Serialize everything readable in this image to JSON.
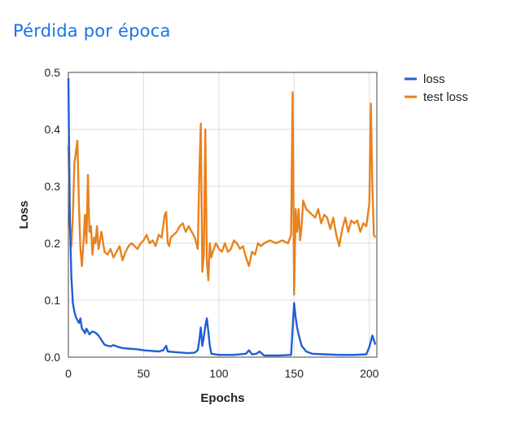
{
  "page": {
    "title": "Pérdida por época",
    "title_color": "#1a73e8"
  },
  "chart_data": {
    "type": "line",
    "title": "Pérdida por época",
    "xlabel": "Epochs",
    "ylabel": "Loss",
    "xlim": [
      0,
      205
    ],
    "ylim": [
      0,
      0.5
    ],
    "x_ticks": [
      0,
      50,
      100,
      150,
      200
    ],
    "y_ticks": [
      0.0,
      0.1,
      0.2,
      0.3,
      0.4,
      0.5
    ],
    "y_tick_labels": [
      "0.0",
      "0.1",
      "0.2",
      "0.3",
      "0.4",
      "0.5"
    ],
    "grid": true,
    "legend_position": "top-right",
    "series": [
      {
        "name": "loss",
        "color": "#1f5fd6",
        "points": [
          [
            0,
            0.49
          ],
          [
            1,
            0.24
          ],
          [
            2,
            0.14
          ],
          [
            3,
            0.095
          ],
          [
            4,
            0.08
          ],
          [
            5,
            0.07
          ],
          [
            6,
            0.065
          ],
          [
            7,
            0.06
          ],
          [
            8,
            0.068
          ],
          [
            9,
            0.05
          ],
          [
            10,
            0.047
          ],
          [
            11,
            0.042
          ],
          [
            12,
            0.05
          ],
          [
            13,
            0.045
          ],
          [
            14,
            0.04
          ],
          [
            15,
            0.043
          ],
          [
            16,
            0.045
          ],
          [
            18,
            0.043
          ],
          [
            20,
            0.038
          ],
          [
            22,
            0.03
          ],
          [
            24,
            0.022
          ],
          [
            26,
            0.02
          ],
          [
            28,
            0.019
          ],
          [
            30,
            0.021
          ],
          [
            33,
            0.018
          ],
          [
            36,
            0.016
          ],
          [
            40,
            0.015
          ],
          [
            45,
            0.014
          ],
          [
            50,
            0.012
          ],
          [
            55,
            0.011
          ],
          [
            60,
            0.01
          ],
          [
            63,
            0.012
          ],
          [
            65,
            0.02
          ],
          [
            66,
            0.01
          ],
          [
            70,
            0.009
          ],
          [
            75,
            0.008
          ],
          [
            80,
            0.007
          ],
          [
            84,
            0.008
          ],
          [
            86,
            0.012
          ],
          [
            87,
            0.03
          ],
          [
            88,
            0.052
          ],
          [
            89,
            0.02
          ],
          [
            90,
            0.035
          ],
          [
            91,
            0.055
          ],
          [
            92,
            0.068
          ],
          [
            93,
            0.045
          ],
          [
            94,
            0.02
          ],
          [
            95,
            0.006
          ],
          [
            100,
            0.004
          ],
          [
            110,
            0.004
          ],
          [
            118,
            0.006
          ],
          [
            120,
            0.012
          ],
          [
            122,
            0.005
          ],
          [
            125,
            0.006
          ],
          [
            127,
            0.01
          ],
          [
            130,
            0.003
          ],
          [
            140,
            0.003
          ],
          [
            148,
            0.004
          ],
          [
            149,
            0.05
          ],
          [
            150,
            0.095
          ],
          [
            151,
            0.07
          ],
          [
            152,
            0.052
          ],
          [
            153,
            0.04
          ],
          [
            155,
            0.02
          ],
          [
            158,
            0.01
          ],
          [
            162,
            0.006
          ],
          [
            170,
            0.005
          ],
          [
            180,
            0.004
          ],
          [
            190,
            0.004
          ],
          [
            198,
            0.005
          ],
          [
            200,
            0.018
          ],
          [
            202,
            0.038
          ],
          [
            204,
            0.022
          ]
        ]
      },
      {
        "name": "test loss",
        "color": "#e8821e",
        "points": [
          [
            0,
            0.37
          ],
          [
            1,
            0.23
          ],
          [
            2,
            0.195
          ],
          [
            3,
            0.25
          ],
          [
            4,
            0.34
          ],
          [
            5,
            0.36
          ],
          [
            6,
            0.38
          ],
          [
            7,
            0.27
          ],
          [
            8,
            0.19
          ],
          [
            9,
            0.16
          ],
          [
            10,
            0.2
          ],
          [
            11,
            0.25
          ],
          [
            12,
            0.2
          ],
          [
            13,
            0.32
          ],
          [
            14,
            0.22
          ],
          [
            15,
            0.23
          ],
          [
            16,
            0.18
          ],
          [
            17,
            0.21
          ],
          [
            18,
            0.2
          ],
          [
            19,
            0.23
          ],
          [
            20,
            0.19
          ],
          [
            22,
            0.22
          ],
          [
            24,
            0.185
          ],
          [
            26,
            0.18
          ],
          [
            28,
            0.19
          ],
          [
            30,
            0.175
          ],
          [
            32,
            0.185
          ],
          [
            34,
            0.195
          ],
          [
            36,
            0.17
          ],
          [
            38,
            0.185
          ],
          [
            40,
            0.195
          ],
          [
            42,
            0.2
          ],
          [
            44,
            0.195
          ],
          [
            46,
            0.19
          ],
          [
            48,
            0.2
          ],
          [
            50,
            0.205
          ],
          [
            52,
            0.215
          ],
          [
            54,
            0.2
          ],
          [
            56,
            0.205
          ],
          [
            58,
            0.195
          ],
          [
            60,
            0.215
          ],
          [
            62,
            0.21
          ],
          [
            63,
            0.23
          ],
          [
            64,
            0.25
          ],
          [
            65,
            0.255
          ],
          [
            66,
            0.2
          ],
          [
            67,
            0.195
          ],
          [
            68,
            0.21
          ],
          [
            70,
            0.215
          ],
          [
            72,
            0.22
          ],
          [
            74,
            0.23
          ],
          [
            76,
            0.235
          ],
          [
            78,
            0.22
          ],
          [
            80,
            0.23
          ],
          [
            82,
            0.22
          ],
          [
            84,
            0.21
          ],
          [
            86,
            0.19
          ],
          [
            87,
            0.32
          ],
          [
            88,
            0.41
          ],
          [
            89,
            0.15
          ],
          [
            90,
            0.18
          ],
          [
            91,
            0.4
          ],
          [
            92,
            0.17
          ],
          [
            93,
            0.135
          ],
          [
            94,
            0.2
          ],
          [
            95,
            0.175
          ],
          [
            96,
            0.185
          ],
          [
            98,
            0.2
          ],
          [
            100,
            0.19
          ],
          [
            102,
            0.185
          ],
          [
            104,
            0.2
          ],
          [
            106,
            0.185
          ],
          [
            108,
            0.19
          ],
          [
            110,
            0.205
          ],
          [
            112,
            0.2
          ],
          [
            114,
            0.19
          ],
          [
            116,
            0.195
          ],
          [
            118,
            0.175
          ],
          [
            120,
            0.16
          ],
          [
            122,
            0.185
          ],
          [
            124,
            0.18
          ],
          [
            126,
            0.2
          ],
          [
            128,
            0.195
          ],
          [
            130,
            0.2
          ],
          [
            134,
            0.205
          ],
          [
            138,
            0.2
          ],
          [
            142,
            0.205
          ],
          [
            146,
            0.2
          ],
          [
            148,
            0.215
          ],
          [
            149,
            0.465
          ],
          [
            150,
            0.11
          ],
          [
            151,
            0.26
          ],
          [
            152,
            0.22
          ],
          [
            153,
            0.26
          ],
          [
            154,
            0.205
          ],
          [
            155,
            0.23
          ],
          [
            156,
            0.275
          ],
          [
            158,
            0.26
          ],
          [
            160,
            0.255
          ],
          [
            162,
            0.25
          ],
          [
            164,
            0.245
          ],
          [
            166,
            0.26
          ],
          [
            168,
            0.235
          ],
          [
            170,
            0.25
          ],
          [
            172,
            0.245
          ],
          [
            174,
            0.225
          ],
          [
            176,
            0.245
          ],
          [
            178,
            0.215
          ],
          [
            180,
            0.195
          ],
          [
            182,
            0.225
          ],
          [
            184,
            0.245
          ],
          [
            186,
            0.22
          ],
          [
            188,
            0.24
          ],
          [
            190,
            0.235
          ],
          [
            192,
            0.24
          ],
          [
            194,
            0.22
          ],
          [
            196,
            0.235
          ],
          [
            198,
            0.23
          ],
          [
            200,
            0.27
          ],
          [
            201,
            0.445
          ],
          [
            202,
            0.3
          ],
          [
            203,
            0.215
          ],
          [
            204,
            0.21
          ]
        ]
      }
    ]
  }
}
